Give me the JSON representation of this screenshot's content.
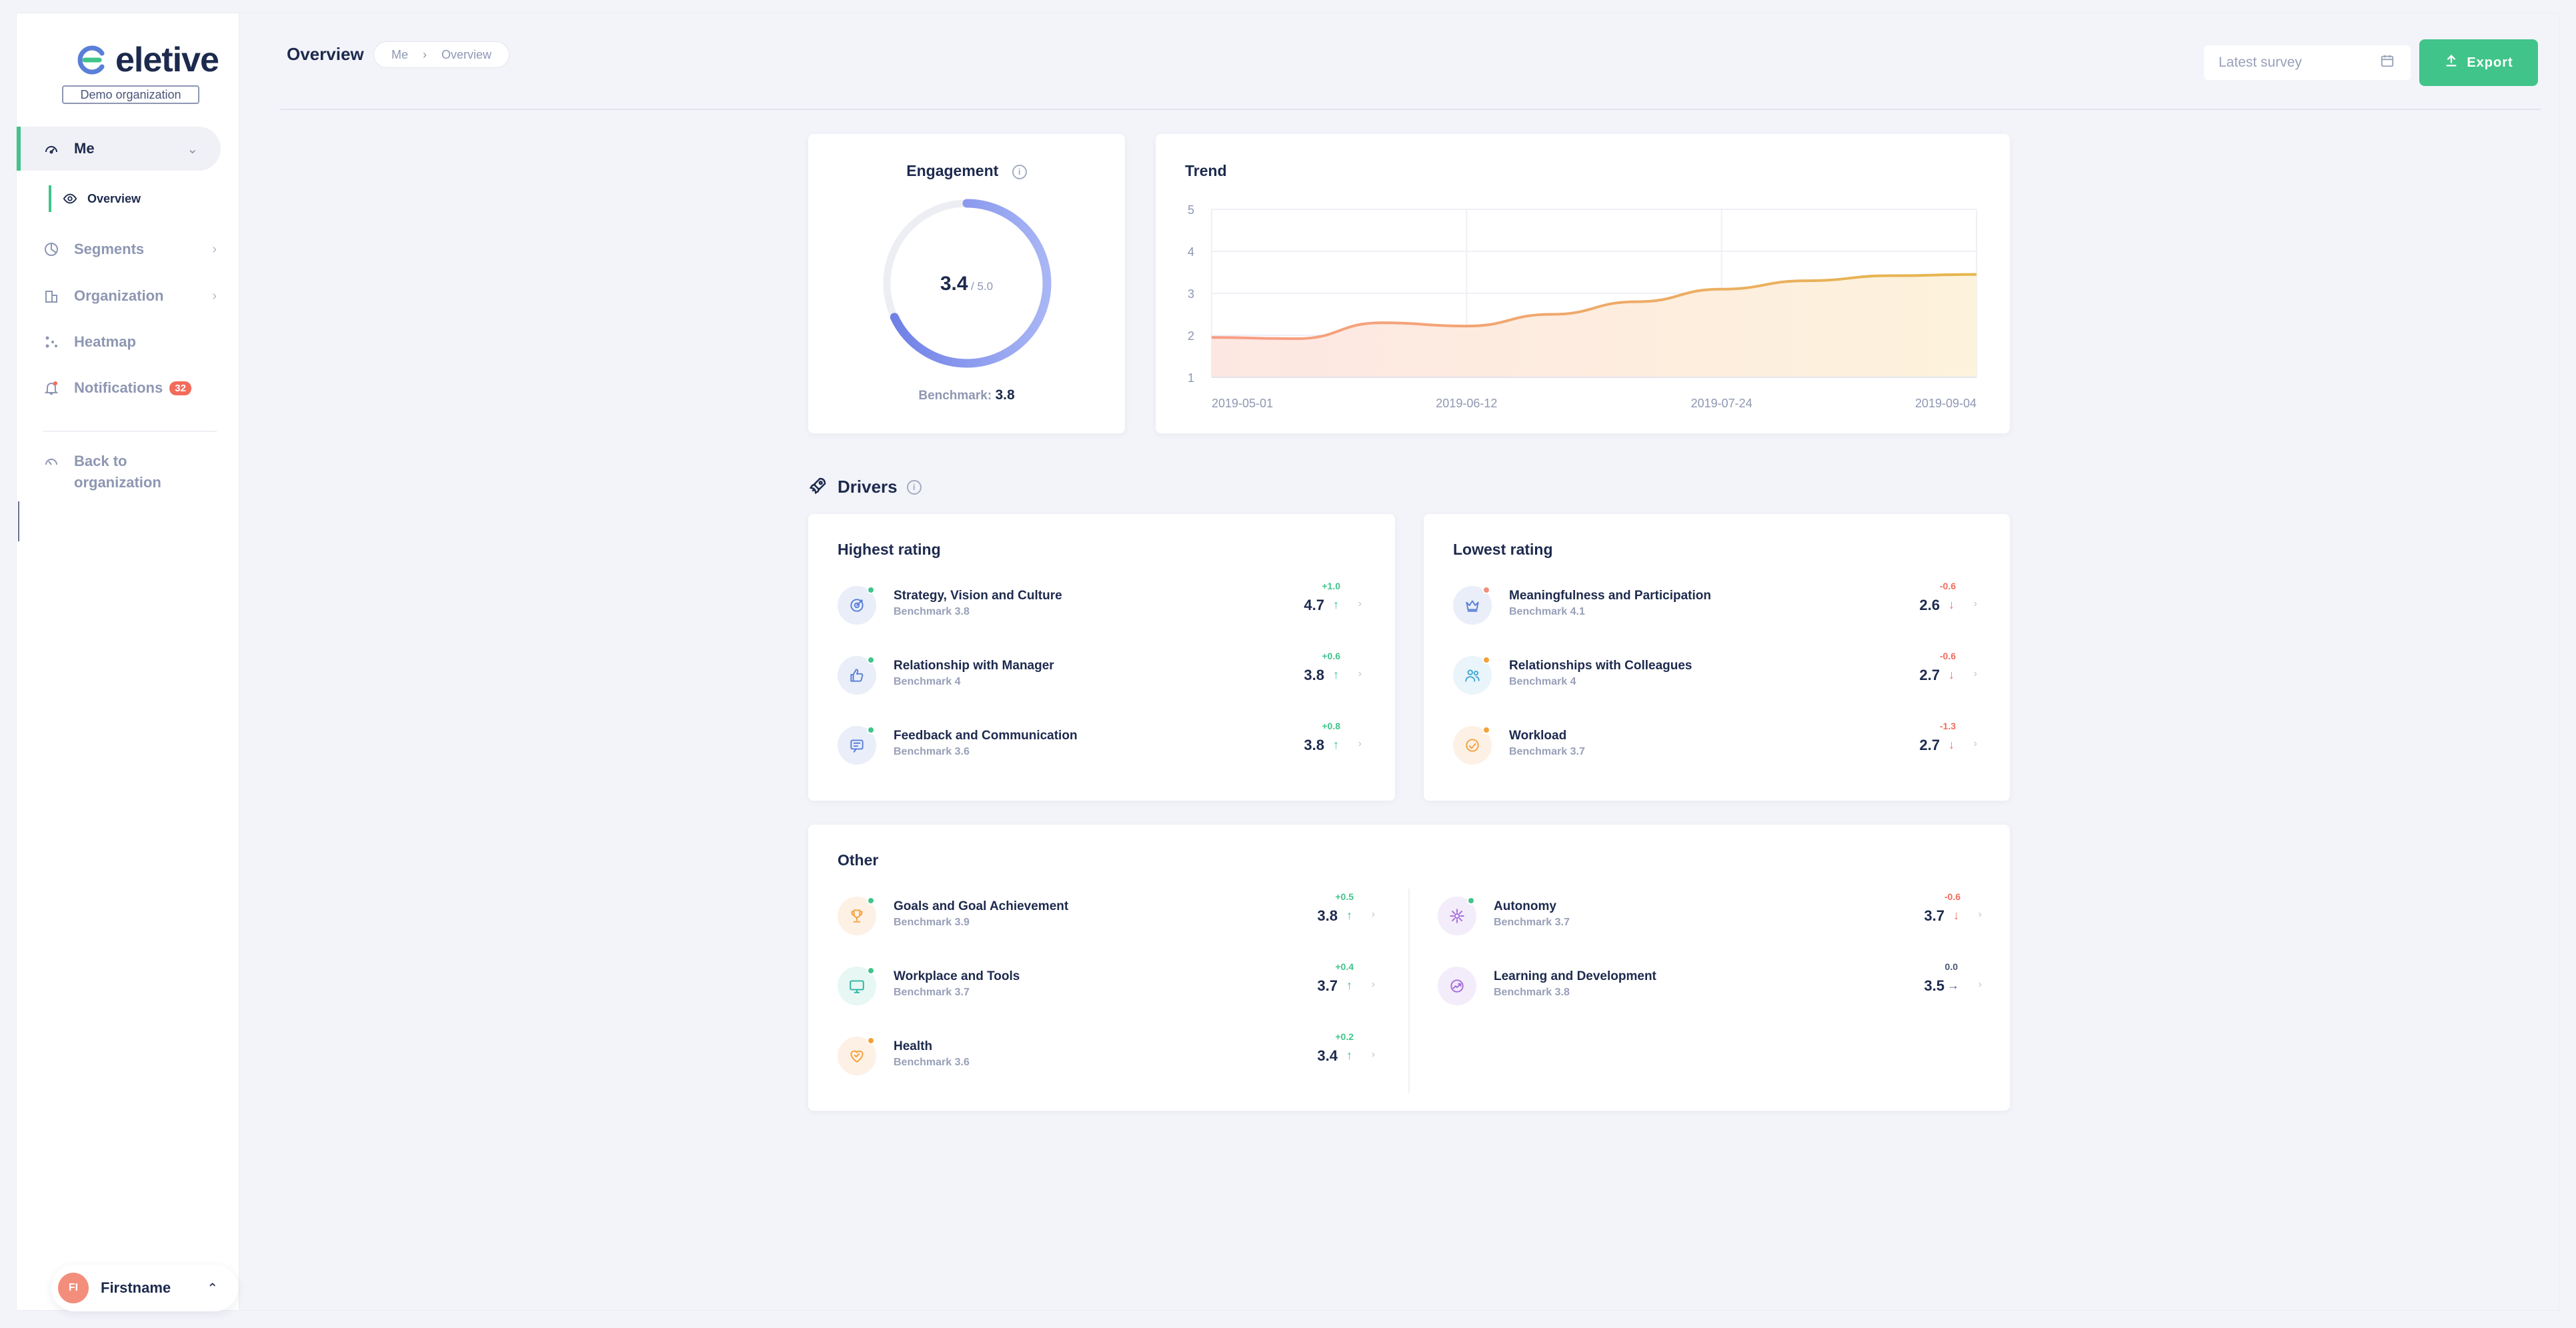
{
  "brand": {
    "name": "eletive",
    "org": "Demo organization",
    "accent": "#41c48a"
  },
  "sidebar": {
    "me": "Me",
    "overview": "Overview",
    "items": [
      {
        "label": "Segments"
      },
      {
        "label": "Organization"
      },
      {
        "label": "Heatmap"
      },
      {
        "label": "Notifications",
        "badge": "32"
      }
    ],
    "back": "Back to organization",
    "user": {
      "initials": "FI",
      "name": "Firstname"
    }
  },
  "header": {
    "title": "Overview",
    "breadcrumb": [
      "Me",
      "Overview"
    ],
    "survey_placeholder": "Latest survey",
    "export_label": "Export"
  },
  "engagement": {
    "title": "Engagement",
    "value": "3.4",
    "max": "/ 5.0",
    "fraction": 0.68,
    "benchmark_label": "Benchmark:",
    "benchmark_value": "3.8"
  },
  "trend": {
    "title": "Trend",
    "y_ticks": [
      "5",
      "4",
      "3",
      "2",
      "1"
    ],
    "x_ticks": [
      "2019-05-01",
      "2019-06-12",
      "2019-07-24",
      "2019-09-04"
    ]
  },
  "chart_data": {
    "type": "area",
    "title": "Trend",
    "ylim": [
      1,
      5
    ],
    "x": [
      "2019-05-01",
      "2019-05-15",
      "2019-05-29",
      "2019-06-12",
      "2019-06-26",
      "2019-07-10",
      "2019-07-24",
      "2019-08-07",
      "2019-08-21",
      "2019-09-04"
    ],
    "series": [
      {
        "values": [
          1.95,
          1.92,
          2.3,
          2.22,
          2.5,
          2.8,
          3.1,
          3.3,
          3.42,
          3.45
        ]
      }
    ],
    "grid": true
  },
  "drivers": {
    "title": "Drivers",
    "highest": {
      "title": "Highest rating",
      "rows": [
        {
          "name": "Strategy, Vision and Culture",
          "bench": "Benchmark 3.8",
          "score": "4.7",
          "delta": "+1.0",
          "dir": "up",
          "icon": "target-icon",
          "bg": "#e9eef9",
          "fg": "#5a7fd9",
          "dot": "#41c48a"
        },
        {
          "name": "Relationship with Manager",
          "bench": "Benchmark 4",
          "score": "3.8",
          "delta": "+0.6",
          "dir": "up",
          "icon": "thumbs-up-icon",
          "bg": "#e9eef9",
          "fg": "#5a7fd9",
          "dot": "#41c48a"
        },
        {
          "name": "Feedback and Communication",
          "bench": "Benchmark 3.6",
          "score": "3.8",
          "delta": "+0.8",
          "dir": "up",
          "icon": "chat-icon",
          "bg": "#e9eef9",
          "fg": "#5a7fd9",
          "dot": "#41c48a"
        }
      ]
    },
    "lowest": {
      "title": "Lowest rating",
      "rows": [
        {
          "name": "Meaningfulness and Participation",
          "bench": "Benchmark 4.1",
          "score": "2.6",
          "delta": "-0.6",
          "dir": "down",
          "icon": "crown-icon",
          "bg": "#e9eef9",
          "fg": "#5a7fd9",
          "dot": "#f28e7b"
        },
        {
          "name": "Relationships with Colleagues",
          "bench": "Benchmark 4",
          "score": "2.7",
          "delta": "-0.6",
          "dir": "down",
          "icon": "people-icon",
          "bg": "#e9f5fa",
          "fg": "#3fa8d6",
          "dot": "#f5a13c"
        },
        {
          "name": "Workload",
          "bench": "Benchmark 3.7",
          "score": "2.7",
          "delta": "-1.3",
          "dir": "down",
          "icon": "gauge-icon",
          "bg": "#fdf1e6",
          "fg": "#f5a13c",
          "dot": "#f5a13c"
        }
      ]
    },
    "other": {
      "title": "Other",
      "left": [
        {
          "name": "Goals and Goal Achievement",
          "bench": "Benchmark 3.9",
          "score": "3.8",
          "delta": "+0.5",
          "dir": "up",
          "icon": "trophy-icon",
          "bg": "#fdf1e6",
          "fg": "#f5a13c",
          "dot": "#41c48a"
        },
        {
          "name": "Workplace and Tools",
          "bench": "Benchmark 3.7",
          "score": "3.7",
          "delta": "+0.4",
          "dir": "up",
          "icon": "monitor-icon",
          "bg": "#e6f7f4",
          "fg": "#2fb5a0",
          "dot": "#41c48a"
        },
        {
          "name": "Health",
          "bench": "Benchmark 3.6",
          "score": "3.4",
          "delta": "+0.2",
          "dir": "up",
          "icon": "heart-icon",
          "bg": "#fdf1e6",
          "fg": "#f5a13c",
          "dot": "#f5a13c"
        }
      ],
      "right": [
        {
          "name": "Autonomy",
          "bench": "Benchmark 3.7",
          "score": "3.7",
          "delta": "-0.6",
          "dir": "down",
          "icon": "sparkle-icon",
          "bg": "#f3ecfa",
          "fg": "#a56ed9",
          "dot": "#41c48a"
        },
        {
          "name": "Learning and Development",
          "bench": "Benchmark 3.8",
          "score": "3.5",
          "delta": "0.0",
          "dir": "flat",
          "icon": "growth-icon",
          "bg": "#f3ecfa",
          "fg": "#a56ed9",
          "dot": ""
        }
      ]
    }
  }
}
